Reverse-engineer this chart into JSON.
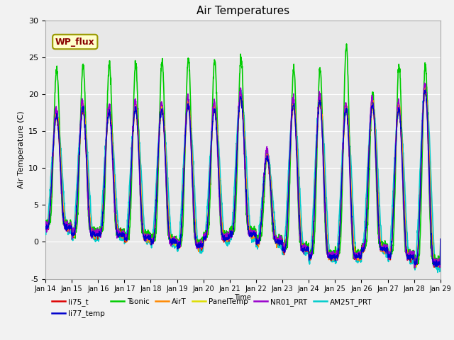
{
  "title": "Air Temperatures",
  "ylabel": "Air Temperature (C)",
  "xlabel": "Time",
  "ylim": [
    -5,
    30
  ],
  "n_days": 15,
  "start_day": 14,
  "wp_flux_label": "WP_flux",
  "wp_flux_facecolor": "#ffffcc",
  "wp_flux_edgecolor": "#999900",
  "wp_flux_textcolor": "#880000",
  "fig_facecolor": "#f2f2f2",
  "ax_facecolor": "#e8e8e8",
  "series_order": [
    "li75_t",
    "li77_temp",
    "Tsonic",
    "AirT",
    "PanelTemp",
    "NR01_PRT",
    "AM25T_PRT"
  ],
  "series": {
    "li75_t": {
      "color": "#dd0000",
      "lw": 1.0,
      "zorder": 5
    },
    "li77_temp": {
      "color": "#0000cc",
      "lw": 1.0,
      "zorder": 6
    },
    "Tsonic": {
      "color": "#00cc00",
      "lw": 1.2,
      "zorder": 4
    },
    "AirT": {
      "color": "#ff8800",
      "lw": 1.0,
      "zorder": 5
    },
    "PanelTemp": {
      "color": "#dddd00",
      "lw": 1.0,
      "zorder": 5
    },
    "NR01_PRT": {
      "color": "#9900cc",
      "lw": 1.0,
      "zorder": 5
    },
    "AM25T_PRT": {
      "color": "#00cccc",
      "lw": 1.2,
      "zorder": 4
    }
  },
  "xtick_labels": [
    "Jan 14",
    "Jan 15",
    "Jan 16",
    "Jan 17",
    "Jan 18",
    "Jan 19",
    "Jan 20",
    "Jan 21",
    "Jan 22",
    "Jan 23",
    "Jan 24",
    "Jan 25",
    "Jan 26",
    "Jan 27",
    "Jan 28",
    "Jan 29"
  ],
  "ytick_values": [
    -5,
    0,
    5,
    10,
    15,
    20,
    25,
    30
  ],
  "base_temps": [
    2.0,
    1.0,
    1.0,
    0.5,
    0.0,
    -0.5,
    0.5,
    1.0,
    0.0,
    -1.0,
    -2.0,
    -2.0,
    -1.0,
    -2.0,
    -3.0
  ],
  "day_peaks": [
    17.0,
    18.0,
    17.5,
    18.0,
    18.0,
    18.5,
    18.0,
    19.5,
    11.5,
    18.5,
    19.0,
    18.0,
    18.5,
    18.0,
    20.5
  ],
  "tsonic_extra": [
    6.5,
    6.0,
    6.5,
    6.0,
    6.5,
    6.5,
    6.5,
    5.5,
    0.5,
    5.0,
    4.5,
    8.5,
    1.5,
    6.0,
    3.5
  ],
  "am25t_extra": [
    0.0,
    0.0,
    0.0,
    0.0,
    0.0,
    0.0,
    0.0,
    0.5,
    0.0,
    0.0,
    0.0,
    0.0,
    0.0,
    0.0,
    0.5
  ]
}
